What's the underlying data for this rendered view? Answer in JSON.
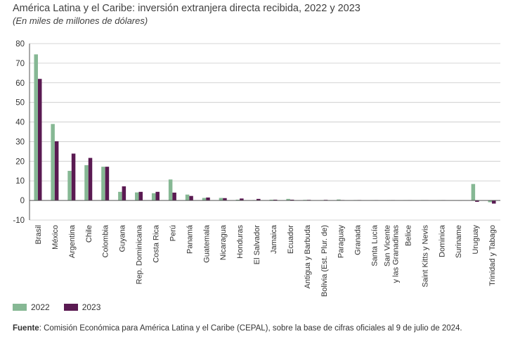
{
  "title": "América Latina y el Caribe: inversión extranjera directa recibida, 2022 y 2023",
  "subtitle": "(En miles de millones de dólares)",
  "source": {
    "label": "Fuente",
    "text": ":  Comisión Económica para América Latina y el Caribe (CEPAL), sobre la base de cifras oficiales al 9 de julio de 2024."
  },
  "colors": {
    "s2022": "#86b894",
    "s2023": "#5a1a52",
    "grid": "#c8c8c8",
    "axis": "#555555"
  },
  "chart_data": {
    "type": "bar",
    "ylim": [
      -10,
      80
    ],
    "yticks": [
      -10,
      0,
      10,
      20,
      30,
      40,
      50,
      60,
      70,
      80
    ],
    "legend_position": "bottom-left",
    "grid": true,
    "categories": [
      "Brasil",
      "México",
      "Argentina",
      "Chile",
      "Colombia",
      "Guyana",
      "Rep. Dominicana",
      "Costa Rica",
      "Perú",
      "Panamá",
      "Guatemala",
      "Nicaragua",
      "Honduras",
      "El Salvador",
      "Jamaica",
      "Ecuador",
      "Antigua y Barbuda",
      "Bolivia (Est. Plur. de)",
      "Paraguay",
      "Granada",
      "Santa Lucía",
      "San Vicente y las Granadinas",
      "Belice",
      "Saint Kitts y Nevis",
      "Dominica",
      "Suriname",
      "Uruguay",
      "Trinidad y Tabago"
    ],
    "category_lines": [
      [
        "Brasil"
      ],
      [
        "México"
      ],
      [
        "Argentina"
      ],
      [
        "Chile"
      ],
      [
        "Colombia"
      ],
      [
        "Guyana"
      ],
      [
        "Rep. Dominicana"
      ],
      [
        "Costa Rica"
      ],
      [
        "Perú"
      ],
      [
        "Panamá"
      ],
      [
        "Guatemala"
      ],
      [
        "Nicaragua"
      ],
      [
        "Honduras"
      ],
      [
        "El Salvador"
      ],
      [
        "Jamaica"
      ],
      [
        "Ecuador"
      ],
      [
        "Antigua y Barbuda"
      ],
      [
        "Bolivia (Est. Plur. de)"
      ],
      [
        "Paraguay"
      ],
      [
        "Granada"
      ],
      [
        "Santa Lucía"
      ],
      [
        "San Vicente",
        "y las Granadinas"
      ],
      [
        "Belice"
      ],
      [
        "Saint Kitts y Nevis"
      ],
      [
        "Dominica"
      ],
      [
        "Suriname"
      ],
      [
        "Uruguay"
      ],
      [
        "Trinidad y Tabago"
      ]
    ],
    "series": [
      {
        "name": "2022",
        "values": [
          74.5,
          39.0,
          15.1,
          18.0,
          17.2,
          4.4,
          4.1,
          3.7,
          10.7,
          3.0,
          1.3,
          1.3,
          0.4,
          0.2,
          0.4,
          0.8,
          0.3,
          0.1,
          0.5,
          0.2,
          0.1,
          0.1,
          0.1,
          0.2,
          0.1,
          0.0,
          8.4,
          -0.9
        ]
      },
      {
        "name": "2023",
        "values": [
          62.0,
          30.2,
          23.9,
          21.7,
          17.2,
          7.2,
          4.4,
          4.4,
          4.0,
          2.3,
          1.5,
          1.2,
          1.0,
          0.8,
          0.4,
          0.4,
          0.3,
          0.3,
          0.2,
          0.2,
          0.1,
          0.1,
          0.1,
          0.1,
          0.1,
          -0.1,
          -0.7,
          -1.6
        ]
      }
    ]
  }
}
